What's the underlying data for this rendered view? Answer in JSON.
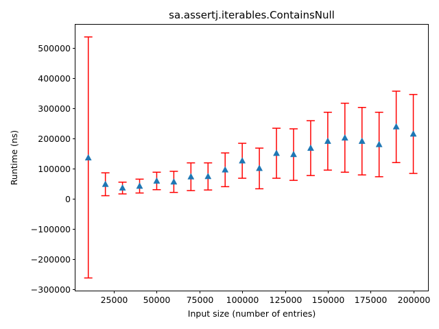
{
  "chart_data": {
    "type": "scatter",
    "title": "sa.assertj.iterables.ContainsNull",
    "xlabel": "Input size (number of entries)",
    "ylabel": "Runtime (ns)",
    "xlim": [
      2500,
      209000
    ],
    "ylim": [
      -305000,
      580000
    ],
    "x_ticks": [
      25000,
      50000,
      75000,
      100000,
      125000,
      150000,
      175000,
      200000
    ],
    "y_ticks": [
      -300000,
      -200000,
      -100000,
      0,
      100000,
      200000,
      300000,
      400000,
      500000
    ],
    "x_tick_labels": [
      "25000",
      "50000",
      "75000",
      "100000",
      "125000",
      "150000",
      "175000",
      "200000"
    ],
    "y_tick_labels": [
      "−300000",
      "−200000",
      "−100000",
      "0",
      "100000",
      "200000",
      "300000",
      "400000",
      "500000"
    ],
    "series": [
      {
        "marker": "triangle",
        "color": "#1f77b4",
        "error_color": "#ff0000",
        "points": [
          {
            "x": 10000,
            "y": 136000,
            "lo": -263000,
            "hi": 537000
          },
          {
            "x": 20000,
            "y": 48000,
            "lo": 10000,
            "hi": 86000
          },
          {
            "x": 30000,
            "y": 36000,
            "lo": 16000,
            "hi": 55000
          },
          {
            "x": 40000,
            "y": 42000,
            "lo": 19000,
            "hi": 65000
          },
          {
            "x": 50000,
            "y": 59000,
            "lo": 30000,
            "hi": 88000
          },
          {
            "x": 60000,
            "y": 56000,
            "lo": 21000,
            "hi": 91000
          },
          {
            "x": 70000,
            "y": 73000,
            "lo": 27000,
            "hi": 119000
          },
          {
            "x": 80000,
            "y": 74000,
            "lo": 29000,
            "hi": 119000
          },
          {
            "x": 90000,
            "y": 96000,
            "lo": 40000,
            "hi": 152000
          },
          {
            "x": 100000,
            "y": 126000,
            "lo": 68000,
            "hi": 184000
          },
          {
            "x": 110000,
            "y": 101000,
            "lo": 33000,
            "hi": 168000
          },
          {
            "x": 120000,
            "y": 151000,
            "lo": 68000,
            "hi": 234000
          },
          {
            "x": 130000,
            "y": 147000,
            "lo": 61000,
            "hi": 232000
          },
          {
            "x": 140000,
            "y": 168000,
            "lo": 77000,
            "hi": 259000
          },
          {
            "x": 150000,
            "y": 191000,
            "lo": 95000,
            "hi": 287000
          },
          {
            "x": 160000,
            "y": 202000,
            "lo": 88000,
            "hi": 317000
          },
          {
            "x": 170000,
            "y": 191000,
            "lo": 79000,
            "hi": 303000
          },
          {
            "x": 180000,
            "y": 180000,
            "lo": 73000,
            "hi": 287000
          },
          {
            "x": 190000,
            "y": 239000,
            "lo": 120000,
            "hi": 357000
          },
          {
            "x": 200000,
            "y": 215000,
            "lo": 84000,
            "hi": 346000
          }
        ]
      }
    ],
    "grid": false,
    "legend": "none"
  }
}
